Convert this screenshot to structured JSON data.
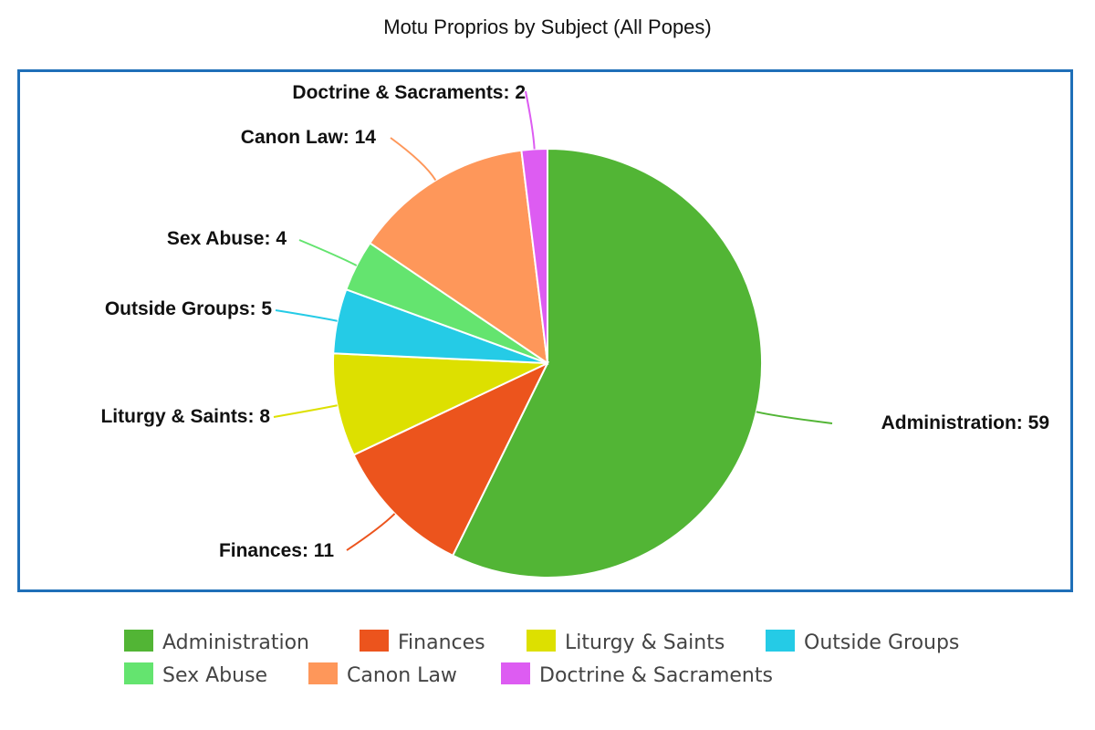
{
  "chart_data": {
    "type": "pie",
    "title": "Motu Proprios by Subject (All Popes)",
    "slices": [
      {
        "name": "Administration",
        "value": 59,
        "color": "#52b535",
        "label": "Administration: 59"
      },
      {
        "name": "Finances",
        "value": 11,
        "color": "#ec541d",
        "label": "Finances: 11"
      },
      {
        "name": "Liturgy & Saints",
        "value": 8,
        "color": "#dde000",
        "label": "Liturgy & Saints: 8"
      },
      {
        "name": "Outside Groups",
        "value": 5,
        "color": "#25cbe6",
        "label": "Outside Groups: 5"
      },
      {
        "name": "Sex Abuse",
        "value": 4,
        "color": "#64e46f",
        "label": "Sex Abuse: 4"
      },
      {
        "name": "Canon Law",
        "value": 14,
        "color": "#fe975a",
        "label": "Canon Law: 14"
      },
      {
        "name": "Doctrine & Sacraments",
        "value": 2,
        "color": "#dd5cf2",
        "label": "Doctrine & Sacraments: 2"
      }
    ],
    "start_angle_deg": 0,
    "direction": "clockwise",
    "legend_position": "bottom",
    "frame_color": "#1f6fb8"
  }
}
